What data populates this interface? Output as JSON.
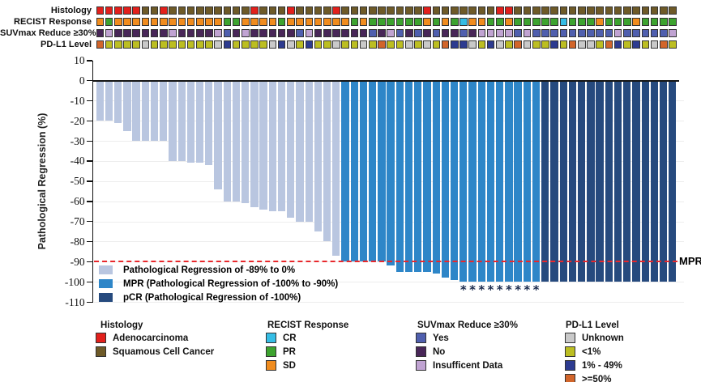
{
  "annotation": {
    "tracks": [
      {
        "label": "Histology",
        "cells": "AAAAASSASSSSSSSSSASSSASSSSASSSSSSSSSASSSSSSSAASSSSSSSSSSSSSSSSSS"
      },
      {
        "label": "RECIST Response",
        "cells": "DPDDDDDDDDDDDDPPDDDDPDDDDDDDPDPPPPPPDPDPCDDPPDPPPPPCPPPDPPPDPPPP"
      },
      {
        "label": "SUVmax Reduce ≥30%",
        "cells": "NINNNNNNINNNNIYNINNNNNYINNNNNNYNIYNYNYNNYNIIIIYIYYYYYYYYYIYYYYYI"
      },
      {
        "label": "PD-L1 Level",
        "cells": "HLLLLULLLLLLLUMLLLLUMULMLLULLULHLLULULHMMULMULHULLMLHUULHMLMLUHL"
      }
    ],
    "codes": {
      "A": {
        "label": "Adenocarcinoma",
        "color": "#e2201c"
      },
      "S": {
        "label": "Squamous Cell Cancer",
        "color": "#6e5a28"
      },
      "C": {
        "label": "CR",
        "color": "#35bde5"
      },
      "P": {
        "label": "PR",
        "color": "#3da32f"
      },
      "D": {
        "label": "SD",
        "color": "#f08c1e"
      },
      "Y": {
        "label": "Yes",
        "color": "#4f5fae"
      },
      "N": {
        "label": "No",
        "color": "#482658"
      },
      "I": {
        "label": "Insufficent Data",
        "color": "#c0a3d2"
      },
      "U": {
        "label": "Unknown",
        "color": "#c9c9c9"
      },
      "L": {
        "label": "<1%",
        "color": "#bcbe22"
      },
      "M": {
        "label": "1% - 49%",
        "color": "#2d3b90"
      },
      "H": {
        "label": ">=50%",
        "color": "#d2652a"
      }
    }
  },
  "chart_data": {
    "type": "bar",
    "subtype": "waterfall",
    "title": "",
    "xlabel": "",
    "ylabel": "Pathological Regression (%)",
    "ylim": [
      -110,
      10
    ],
    "yticks": [
      10,
      0,
      -10,
      -20,
      -30,
      -40,
      -50,
      -60,
      -70,
      -80,
      -90,
      -100,
      -110
    ],
    "grid": true,
    "n_patients": 64,
    "values": [
      -20,
      -20,
      -21,
      -25,
      -30,
      -30,
      -30,
      -30,
      -40,
      -40,
      -41,
      -41,
      -42,
      -54,
      -60,
      -60,
      -61,
      -63,
      -64,
      -65,
      -65,
      -68,
      -70,
      -70,
      -75,
      -80,
      -87,
      -90,
      -90,
      -90,
      -90,
      -90,
      -92,
      -95,
      -95,
      -95,
      -95,
      -96,
      -98,
      -99,
      -100,
      -100,
      -100,
      -100,
      -100,
      -100,
      -100,
      -100,
      -100,
      -100,
      -100,
      -100,
      -100,
      -100,
      -100,
      -100,
      -100,
      -100,
      -100,
      -100,
      -100,
      -100,
      -100,
      -100
    ],
    "groups": "LLLLLLLLLLLLLLLLLLLLLLLLLLLMMMMMMMMMMMMMMMMMMMMMMPPPPPPPPPPPPPPP",
    "group_defs": {
      "L": {
        "label": "Pathological Regression of -89% to 0%",
        "color": "#b9c6e0"
      },
      "M": {
        "label": "MPR (Pathological Regression of -100% to -90%)",
        "color": "#2e86c8"
      },
      "P": {
        "label": "pCR (Pathological Regression of -100%)",
        "color": "#264a7e"
      }
    },
    "legend_order": [
      "L",
      "M",
      "P"
    ],
    "legend_position": "inside-bottom-left",
    "starred_bars": [
      40,
      41,
      42,
      43,
      44,
      45,
      46,
      47,
      48
    ],
    "star_symbol": "*",
    "reference_line": {
      "value": -90,
      "label": "MPR",
      "color": "#e8282c",
      "style": "dashed"
    }
  },
  "bottom_legends": [
    {
      "title": "Histology",
      "items": [
        "A",
        "S"
      ]
    },
    {
      "title": "RECIST Response",
      "items": [
        "C",
        "P",
        "D"
      ]
    },
    {
      "title": "SUVmax Reduce ≥30%",
      "items": [
        "Y",
        "N",
        "I"
      ]
    },
    {
      "title": "PD-L1 Level",
      "items": [
        "U",
        "L",
        "M",
        "H"
      ]
    }
  ]
}
